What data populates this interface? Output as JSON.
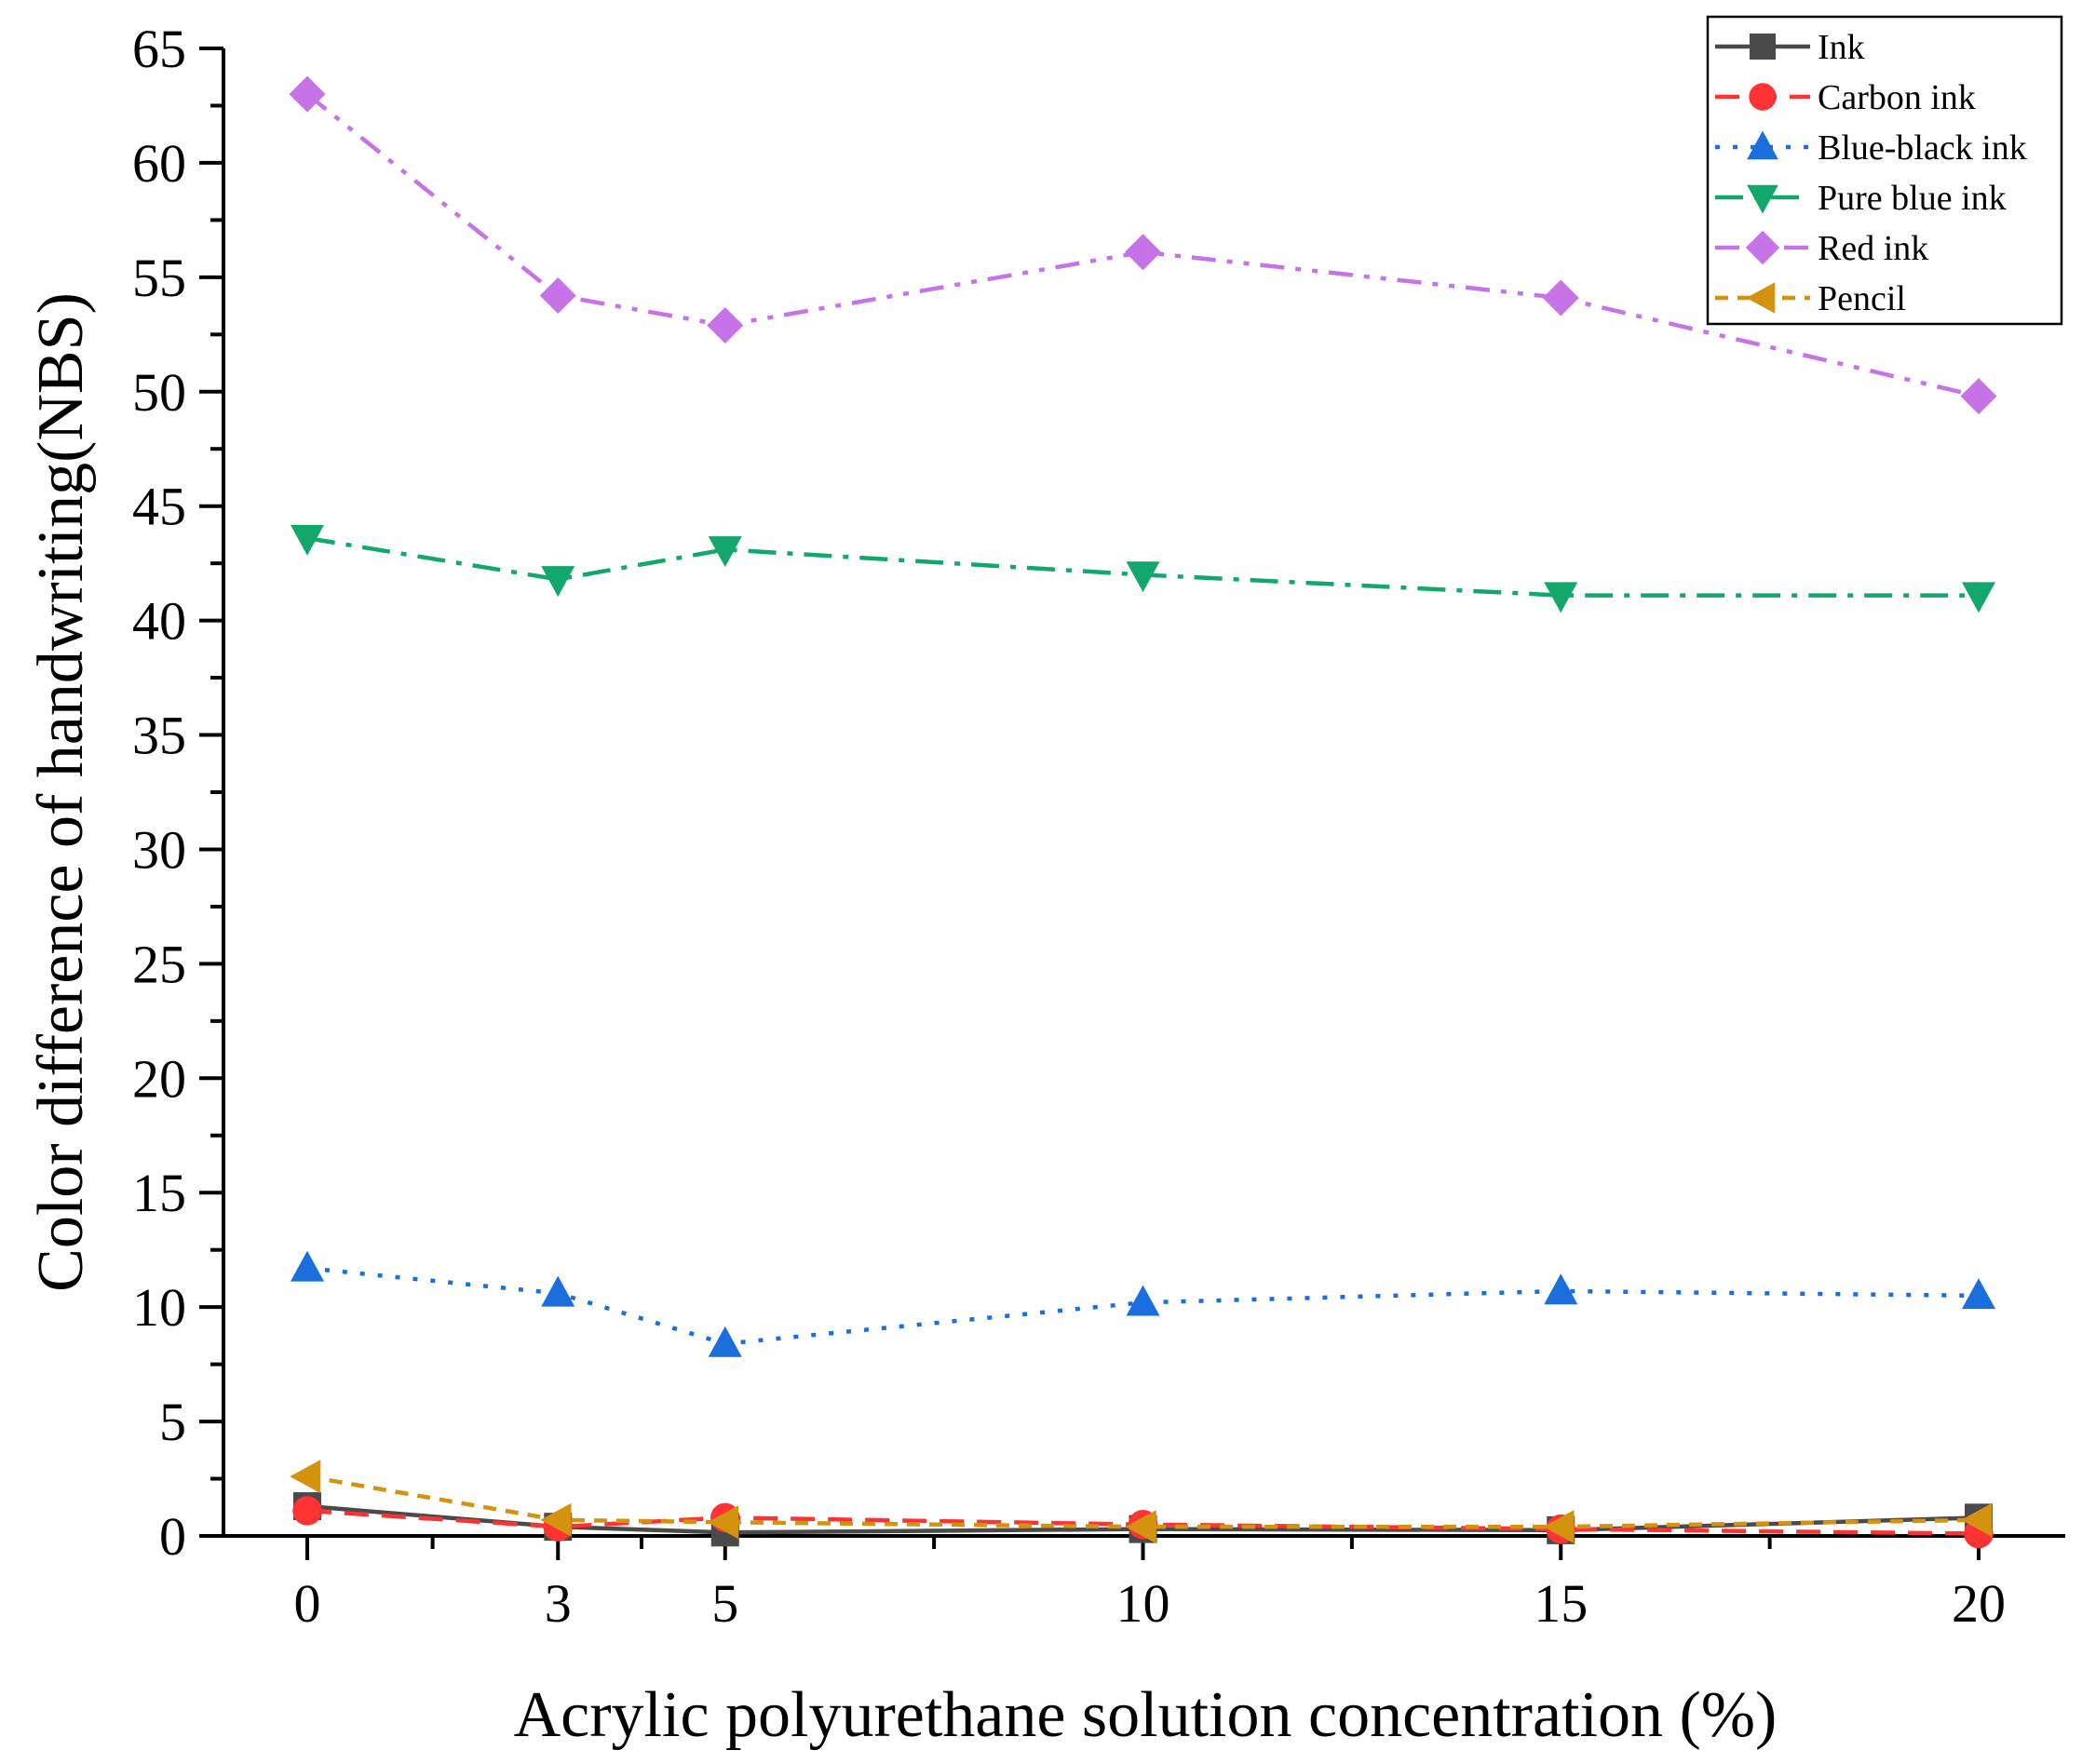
{
  "chart_data": {
    "type": "line",
    "title": "",
    "xlabel": "Acrylic polyurethane solution concentration (%)",
    "ylabel": "Color difference of handwriting(NBS)",
    "x": [
      0,
      3,
      5,
      10,
      15,
      20
    ],
    "x_tick_labels": [
      "0",
      "3",
      "5",
      "10",
      "15",
      "20"
    ],
    "xlim": [
      0,
      20
    ],
    "ylim": [
      0,
      65
    ],
    "y_ticks": [
      0,
      5,
      10,
      15,
      20,
      25,
      30,
      35,
      40,
      45,
      50,
      55,
      60,
      65
    ],
    "y_tick_labels": [
      "0",
      "5",
      "10",
      "15",
      "20",
      "25",
      "30",
      "35",
      "40",
      "45",
      "50",
      "55",
      "60",
      "65"
    ],
    "grid": false,
    "legend_position": "top-right",
    "series": [
      {
        "name": "Ink",
        "values": [
          1.3,
          0.4,
          0.15,
          0.3,
          0.25,
          0.8
        ],
        "color": "#4a4a4a",
        "marker": "square",
        "dash": "solid"
      },
      {
        "name": "Carbon ink",
        "values": [
          1.1,
          0.4,
          0.8,
          0.5,
          0.3,
          0.1
        ],
        "color": "#ff3333",
        "marker": "circle",
        "dash": "dash"
      },
      {
        "name": "Blue-black ink",
        "values": [
          11.7,
          10.6,
          8.4,
          10.2,
          10.7,
          10.5
        ],
        "color": "#1a6fdc",
        "marker": "triangle-up",
        "dash": "dot"
      },
      {
        "name": "Pure blue ink",
        "values": [
          43.6,
          41.8,
          43.1,
          42.0,
          41.1,
          41.1
        ],
        "color": "#12a86b",
        "marker": "triangle-down",
        "dash": "dashdot"
      },
      {
        "name": "Red ink",
        "values": [
          63.0,
          54.2,
          52.9,
          56.1,
          54.1,
          49.8
        ],
        "color": "#c673e8",
        "marker": "diamond",
        "dash": "dashdotdot"
      },
      {
        "name": "Pencil",
        "values": [
          2.6,
          0.7,
          0.6,
          0.4,
          0.4,
          0.7
        ],
        "color": "#d4930f",
        "marker": "triangle-left",
        "dash": "shortdash"
      }
    ]
  }
}
